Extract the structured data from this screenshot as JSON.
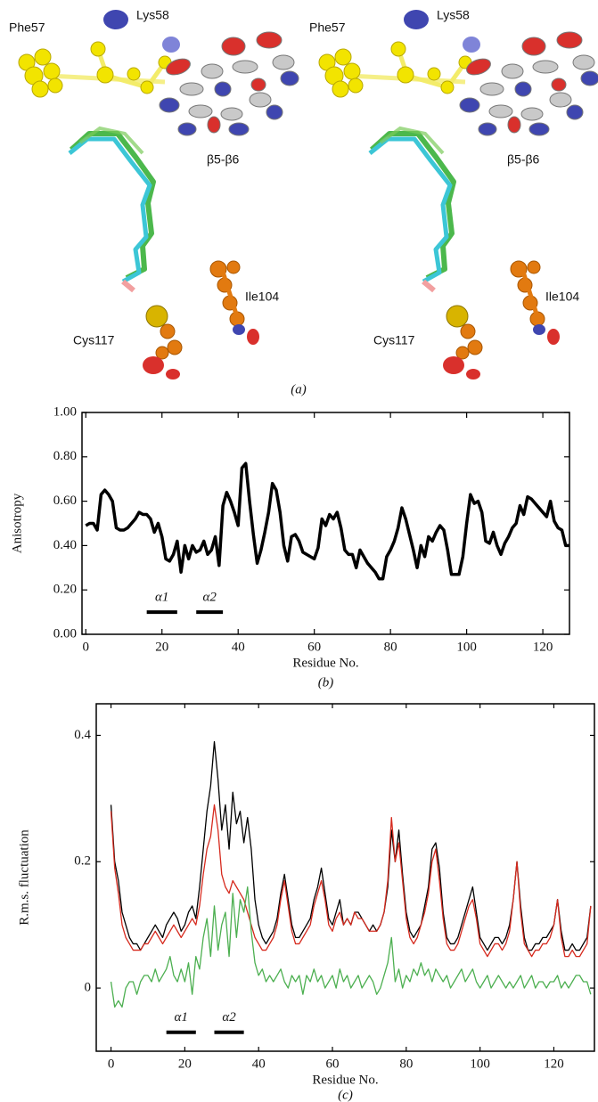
{
  "panel_a": {
    "labels": [
      "Phe57",
      "Lys58",
      "β5-β6",
      "Ile104",
      "Cys117"
    ],
    "caption": "(a)"
  },
  "chart_data": [
    {
      "type": "line",
      "caption": "(b)",
      "x_label": "Residue No.",
      "y_label": "Anisotropy",
      "color": "#000000",
      "xlim": [
        -1,
        127
      ],
      "ylim": [
        0,
        1
      ],
      "xticks": [
        0,
        20,
        40,
        60,
        80,
        100,
        120
      ],
      "yticks": [
        {
          "value": 0,
          "label": "0.00"
        },
        {
          "value": 0.2,
          "label": "0.20"
        },
        {
          "value": 0.4,
          "label": "0.40"
        },
        {
          "value": 0.6,
          "label": "0.60"
        },
        {
          "value": 0.8,
          "label": "0.80"
        },
        {
          "value": 1,
          "label": "1.00"
        }
      ],
      "x": [
        0,
        1,
        2,
        3,
        4,
        5,
        6,
        7,
        8,
        9,
        10,
        11,
        12,
        13,
        14,
        15,
        16,
        17,
        18,
        19,
        20,
        21,
        22,
        23,
        24,
        25,
        26,
        27,
        28,
        29,
        30,
        31,
        32,
        33,
        34,
        35,
        36,
        37,
        38,
        39,
        40,
        41,
        42,
        43,
        44,
        45,
        46,
        47,
        48,
        49,
        50,
        51,
        52,
        53,
        54,
        55,
        56,
        57,
        58,
        59,
        60,
        61,
        62,
        63,
        64,
        65,
        66,
        67,
        68,
        69,
        70,
        71,
        72,
        73,
        74,
        75,
        76,
        77,
        78,
        79,
        80,
        81,
        82,
        83,
        84,
        85,
        86,
        87,
        88,
        89,
        90,
        91,
        92,
        93,
        94,
        95,
        96,
        97,
        98,
        99,
        100,
        101,
        102,
        103,
        104,
        105,
        106,
        107,
        108,
        109,
        110,
        111,
        112,
        113,
        114,
        115,
        116,
        117,
        118,
        119,
        120,
        121,
        122,
        123,
        124,
        125,
        126,
        127
      ],
      "values": [
        0.49,
        0.5,
        0.5,
        0.47,
        0.63,
        0.65,
        0.63,
        0.6,
        0.48,
        0.47,
        0.47,
        0.48,
        0.5,
        0.52,
        0.55,
        0.54,
        0.54,
        0.52,
        0.46,
        0.5,
        0.44,
        0.34,
        0.33,
        0.36,
        0.42,
        0.28,
        0.4,
        0.34,
        0.4,
        0.37,
        0.38,
        0.42,
        0.36,
        0.38,
        0.44,
        0.31,
        0.58,
        0.64,
        0.6,
        0.55,
        0.49,
        0.75,
        0.77,
        0.6,
        0.45,
        0.32,
        0.38,
        0.46,
        0.55,
        0.68,
        0.65,
        0.55,
        0.4,
        0.33,
        0.44,
        0.45,
        0.42,
        0.37,
        0.36,
        0.35,
        0.34,
        0.39,
        0.52,
        0.49,
        0.54,
        0.52,
        0.55,
        0.48,
        0.38,
        0.36,
        0.36,
        0.3,
        0.38,
        0.35,
        0.32,
        0.3,
        0.28,
        0.25,
        0.25,
        0.35,
        0.38,
        0.42,
        0.48,
        0.57,
        0.52,
        0.45,
        0.38,
        0.3,
        0.4,
        0.35,
        0.44,
        0.42,
        0.46,
        0.49,
        0.47,
        0.38,
        0.27,
        0.27,
        0.27,
        0.35,
        0.5,
        0.63,
        0.59,
        0.6,
        0.55,
        0.42,
        0.41,
        0.46,
        0.4,
        0.36,
        0.41,
        0.44,
        0.48,
        0.5,
        0.58,
        0.54,
        0.62,
        0.61,
        0.59,
        0.57,
        0.55,
        0.53,
        0.6,
        0.51,
        0.48,
        0.47,
        0.4,
        0.4
      ],
      "annotations": [
        {
          "label": "α1",
          "start": 16,
          "end": 24,
          "y": 0.1
        },
        {
          "label": "α2",
          "start": 29,
          "end": 36,
          "y": 0.1
        }
      ]
    },
    {
      "type": "line",
      "caption": "(c)",
      "x_label": "Residue No.",
      "y_label": "R.m.s. fluctuation",
      "xlim": [
        -4,
        131
      ],
      "ylim": [
        -0.1,
        0.45
      ],
      "xticks": [
        0,
        20,
        40,
        60,
        80,
        100,
        120
      ],
      "yticks": [
        0,
        0.2,
        0.4
      ],
      "x": [
        0,
        1,
        2,
        3,
        4,
        5,
        6,
        7,
        8,
        9,
        10,
        11,
        12,
        13,
        14,
        15,
        16,
        17,
        18,
        19,
        20,
        21,
        22,
        23,
        24,
        25,
        26,
        27,
        28,
        29,
        30,
        31,
        32,
        33,
        34,
        35,
        36,
        37,
        38,
        39,
        40,
        41,
        42,
        43,
        44,
        45,
        46,
        47,
        48,
        49,
        50,
        51,
        52,
        53,
        54,
        55,
        56,
        57,
        58,
        59,
        60,
        61,
        62,
        63,
        64,
        65,
        66,
        67,
        68,
        69,
        70,
        71,
        72,
        73,
        74,
        75,
        76,
        77,
        78,
        79,
        80,
        81,
        82,
        83,
        84,
        85,
        86,
        87,
        88,
        89,
        90,
        91,
        92,
        93,
        94,
        95,
        96,
        97,
        98,
        99,
        100,
        101,
        102,
        103,
        104,
        105,
        106,
        107,
        108,
        109,
        110,
        111,
        112,
        113,
        114,
        115,
        116,
        117,
        118,
        119,
        120,
        121,
        122,
        123,
        124,
        125,
        126,
        127,
        128,
        129,
        130
      ],
      "series": [
        {
          "color": "#000000",
          "values": [
            0.29,
            0.2,
            0.17,
            0.12,
            0.1,
            0.08,
            0.07,
            0.07,
            0.06,
            0.07,
            0.08,
            0.09,
            0.1,
            0.09,
            0.08,
            0.1,
            0.11,
            0.12,
            0.11,
            0.09,
            0.1,
            0.12,
            0.13,
            0.11,
            0.16,
            0.22,
            0.28,
            0.32,
            0.39,
            0.33,
            0.25,
            0.29,
            0.22,
            0.31,
            0.26,
            0.28,
            0.23,
            0.27,
            0.22,
            0.14,
            0.1,
            0.08,
            0.07,
            0.08,
            0.09,
            0.11,
            0.15,
            0.18,
            0.14,
            0.1,
            0.08,
            0.08,
            0.09,
            0.1,
            0.11,
            0.14,
            0.16,
            0.19,
            0.15,
            0.11,
            0.1,
            0.12,
            0.14,
            0.1,
            0.11,
            0.1,
            0.12,
            0.12,
            0.11,
            0.1,
            0.09,
            0.1,
            0.09,
            0.1,
            0.12,
            0.16,
            0.25,
            0.2,
            0.25,
            0.18,
            0.12,
            0.09,
            0.08,
            0.09,
            0.1,
            0.13,
            0.16,
            0.22,
            0.23,
            0.19,
            0.12,
            0.08,
            0.07,
            0.07,
            0.08,
            0.1,
            0.12,
            0.14,
            0.16,
            0.12,
            0.08,
            0.07,
            0.06,
            0.07,
            0.08,
            0.08,
            0.07,
            0.08,
            0.1,
            0.14,
            0.2,
            0.13,
            0.08,
            0.06,
            0.06,
            0.07,
            0.07,
            0.08,
            0.08,
            0.09,
            0.1,
            0.14,
            0.09,
            0.06,
            0.06,
            0.07,
            0.06,
            0.06,
            0.07,
            0.08,
            0.13
          ]
        },
        {
          "color": "#d62a1e",
          "values": [
            0.28,
            0.19,
            0.15,
            0.1,
            0.08,
            0.07,
            0.06,
            0.06,
            0.06,
            0.07,
            0.07,
            0.08,
            0.09,
            0.08,
            0.07,
            0.08,
            0.09,
            0.1,
            0.09,
            0.08,
            0.09,
            0.1,
            0.11,
            0.1,
            0.13,
            0.18,
            0.22,
            0.24,
            0.29,
            0.25,
            0.18,
            0.16,
            0.15,
            0.17,
            0.16,
            0.15,
            0.14,
            0.12,
            0.1,
            0.08,
            0.07,
            0.06,
            0.06,
            0.07,
            0.08,
            0.1,
            0.14,
            0.17,
            0.13,
            0.09,
            0.07,
            0.07,
            0.08,
            0.09,
            0.1,
            0.13,
            0.15,
            0.17,
            0.14,
            0.1,
            0.09,
            0.11,
            0.12,
            0.1,
            0.11,
            0.1,
            0.12,
            0.11,
            0.11,
            0.1,
            0.09,
            0.09,
            0.09,
            0.1,
            0.12,
            0.17,
            0.27,
            0.2,
            0.23,
            0.17,
            0.11,
            0.08,
            0.07,
            0.08,
            0.1,
            0.12,
            0.15,
            0.2,
            0.22,
            0.17,
            0.11,
            0.07,
            0.06,
            0.06,
            0.07,
            0.09,
            0.11,
            0.13,
            0.14,
            0.11,
            0.07,
            0.06,
            0.05,
            0.06,
            0.07,
            0.07,
            0.06,
            0.07,
            0.09,
            0.14,
            0.2,
            0.12,
            0.07,
            0.06,
            0.05,
            0.06,
            0.06,
            0.07,
            0.07,
            0.08,
            0.1,
            0.14,
            0.08,
            0.05,
            0.05,
            0.06,
            0.05,
            0.05,
            0.06,
            0.07,
            0.13
          ]
        },
        {
          "color": "#4caf50",
          "values": [
            0.01,
            -0.03,
            -0.02,
            -0.03,
            0.0,
            0.01,
            0.01,
            -0.01,
            0.01,
            0.02,
            0.02,
            0.01,
            0.03,
            0.01,
            0.02,
            0.03,
            0.05,
            0.02,
            0.01,
            0.03,
            0.01,
            0.04,
            -0.01,
            0.05,
            0.03,
            0.08,
            0.11,
            0.05,
            0.13,
            0.06,
            0.1,
            0.12,
            0.05,
            0.15,
            0.08,
            0.14,
            0.12,
            0.16,
            0.09,
            0.04,
            0.02,
            0.03,
            0.01,
            0.02,
            0.01,
            0.02,
            0.03,
            0.01,
            0.0,
            0.02,
            0.01,
            0.02,
            -0.01,
            0.02,
            0.01,
            0.03,
            0.01,
            0.02,
            0.0,
            0.01,
            0.02,
            0.0,
            0.03,
            0.01,
            0.02,
            0.0,
            0.01,
            0.02,
            0.0,
            0.01,
            0.02,
            0.01,
            -0.01,
            0.0,
            0.02,
            0.04,
            0.08,
            0.01,
            0.03,
            0.0,
            0.02,
            0.01,
            0.03,
            0.02,
            0.04,
            0.02,
            0.03,
            0.01,
            0.03,
            0.02,
            0.01,
            0.02,
            0.0,
            0.01,
            0.02,
            0.03,
            0.01,
            0.02,
            0.03,
            0.01,
            0.0,
            0.01,
            0.02,
            0.0,
            0.01,
            0.02,
            0.01,
            0.0,
            0.01,
            0.0,
            0.01,
            0.02,
            0.0,
            0.01,
            0.02,
            0.0,
            0.01,
            0.01,
            0.0,
            0.01,
            0.01,
            0.02,
            0.0,
            0.01,
            0.0,
            0.01,
            0.02,
            0.02,
            0.01,
            0.01,
            -0.01
          ]
        }
      ],
      "annotations": [
        {
          "label": "α1",
          "start": 15,
          "end": 23,
          "y": -0.07
        },
        {
          "label": "α2",
          "start": 28,
          "end": 36,
          "y": -0.07
        }
      ]
    }
  ]
}
